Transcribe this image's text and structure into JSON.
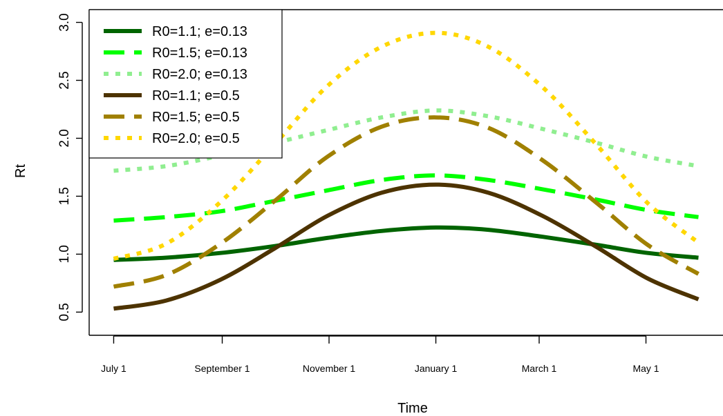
{
  "chart_data": {
    "type": "line",
    "title": "",
    "xlabel": "Time",
    "ylabel": "Rt",
    "x_tick_labels": [
      "July 1",
      "September 1",
      "November 1",
      "January 1",
      "March 1",
      "May 1"
    ],
    "x_tick_days": [
      0,
      62,
      123,
      184,
      243,
      304
    ],
    "y_ticks": [
      0.5,
      1.0,
      1.5,
      2.0,
      2.5,
      3.0
    ],
    "y_tick_labels": [
      "0.5",
      "1.0",
      "1.5",
      "2.0",
      "2.5",
      "3.0"
    ],
    "xlim_days": [
      -14,
      348
    ],
    "ylim": [
      0.3,
      3.11
    ],
    "grid": false,
    "legend_position": "top-left",
    "series": [
      {
        "name": "R0=1.1; e=0.13",
        "color": "#006400",
        "style": "solid",
        "x_days": [
          0,
          30,
          61,
          92,
          122,
          153,
          184,
          214,
          245,
          276,
          305,
          334
        ],
        "values": [
          0.95,
          0.97,
          1.01,
          1.07,
          1.14,
          1.2,
          1.23,
          1.21,
          1.15,
          1.08,
          1.01,
          0.97
        ]
      },
      {
        "name": "R0=1.5; e=0.13",
        "color": "#00ff00",
        "style": "dashed",
        "x_days": [
          0,
          30,
          61,
          92,
          122,
          153,
          184,
          214,
          245,
          276,
          305,
          334
        ],
        "values": [
          1.29,
          1.32,
          1.37,
          1.46,
          1.55,
          1.64,
          1.68,
          1.64,
          1.56,
          1.47,
          1.38,
          1.32
        ]
      },
      {
        "name": "R0=2.0; e=0.13",
        "color": "#90ee90",
        "style": "dotted",
        "x_days": [
          0,
          30,
          61,
          92,
          122,
          153,
          184,
          214,
          245,
          276,
          305,
          334
        ],
        "values": [
          1.72,
          1.76,
          1.85,
          1.96,
          2.07,
          2.18,
          2.24,
          2.19,
          2.08,
          1.96,
          1.84,
          1.76
        ]
      },
      {
        "name": "R0=1.1; e=0.5",
        "color": "#4d3300",
        "style": "solid",
        "x_days": [
          0,
          30,
          61,
          92,
          122,
          153,
          184,
          214,
          245,
          276,
          305,
          334
        ],
        "values": [
          0.53,
          0.6,
          0.78,
          1.05,
          1.33,
          1.53,
          1.6,
          1.53,
          1.33,
          1.06,
          0.79,
          0.61
        ]
      },
      {
        "name": "R0=1.5; e=0.5",
        "color": "#a08000",
        "style": "dashed",
        "x_days": [
          0,
          30,
          61,
          92,
          122,
          153,
          184,
          214,
          245,
          276,
          305,
          334
        ],
        "values": [
          0.72,
          0.82,
          1.09,
          1.46,
          1.84,
          2.1,
          2.18,
          2.09,
          1.81,
          1.44,
          1.08,
          0.83
        ]
      },
      {
        "name": "R0=2.0; e=0.5",
        "color": "#ffd700",
        "style": "dotted",
        "x_days": [
          0,
          30,
          61,
          92,
          122,
          153,
          184,
          214,
          245,
          276,
          305,
          334
        ],
        "values": [
          0.96,
          1.09,
          1.45,
          1.95,
          2.45,
          2.79,
          2.91,
          2.79,
          2.44,
          1.94,
          1.44,
          1.1
        ]
      }
    ]
  }
}
